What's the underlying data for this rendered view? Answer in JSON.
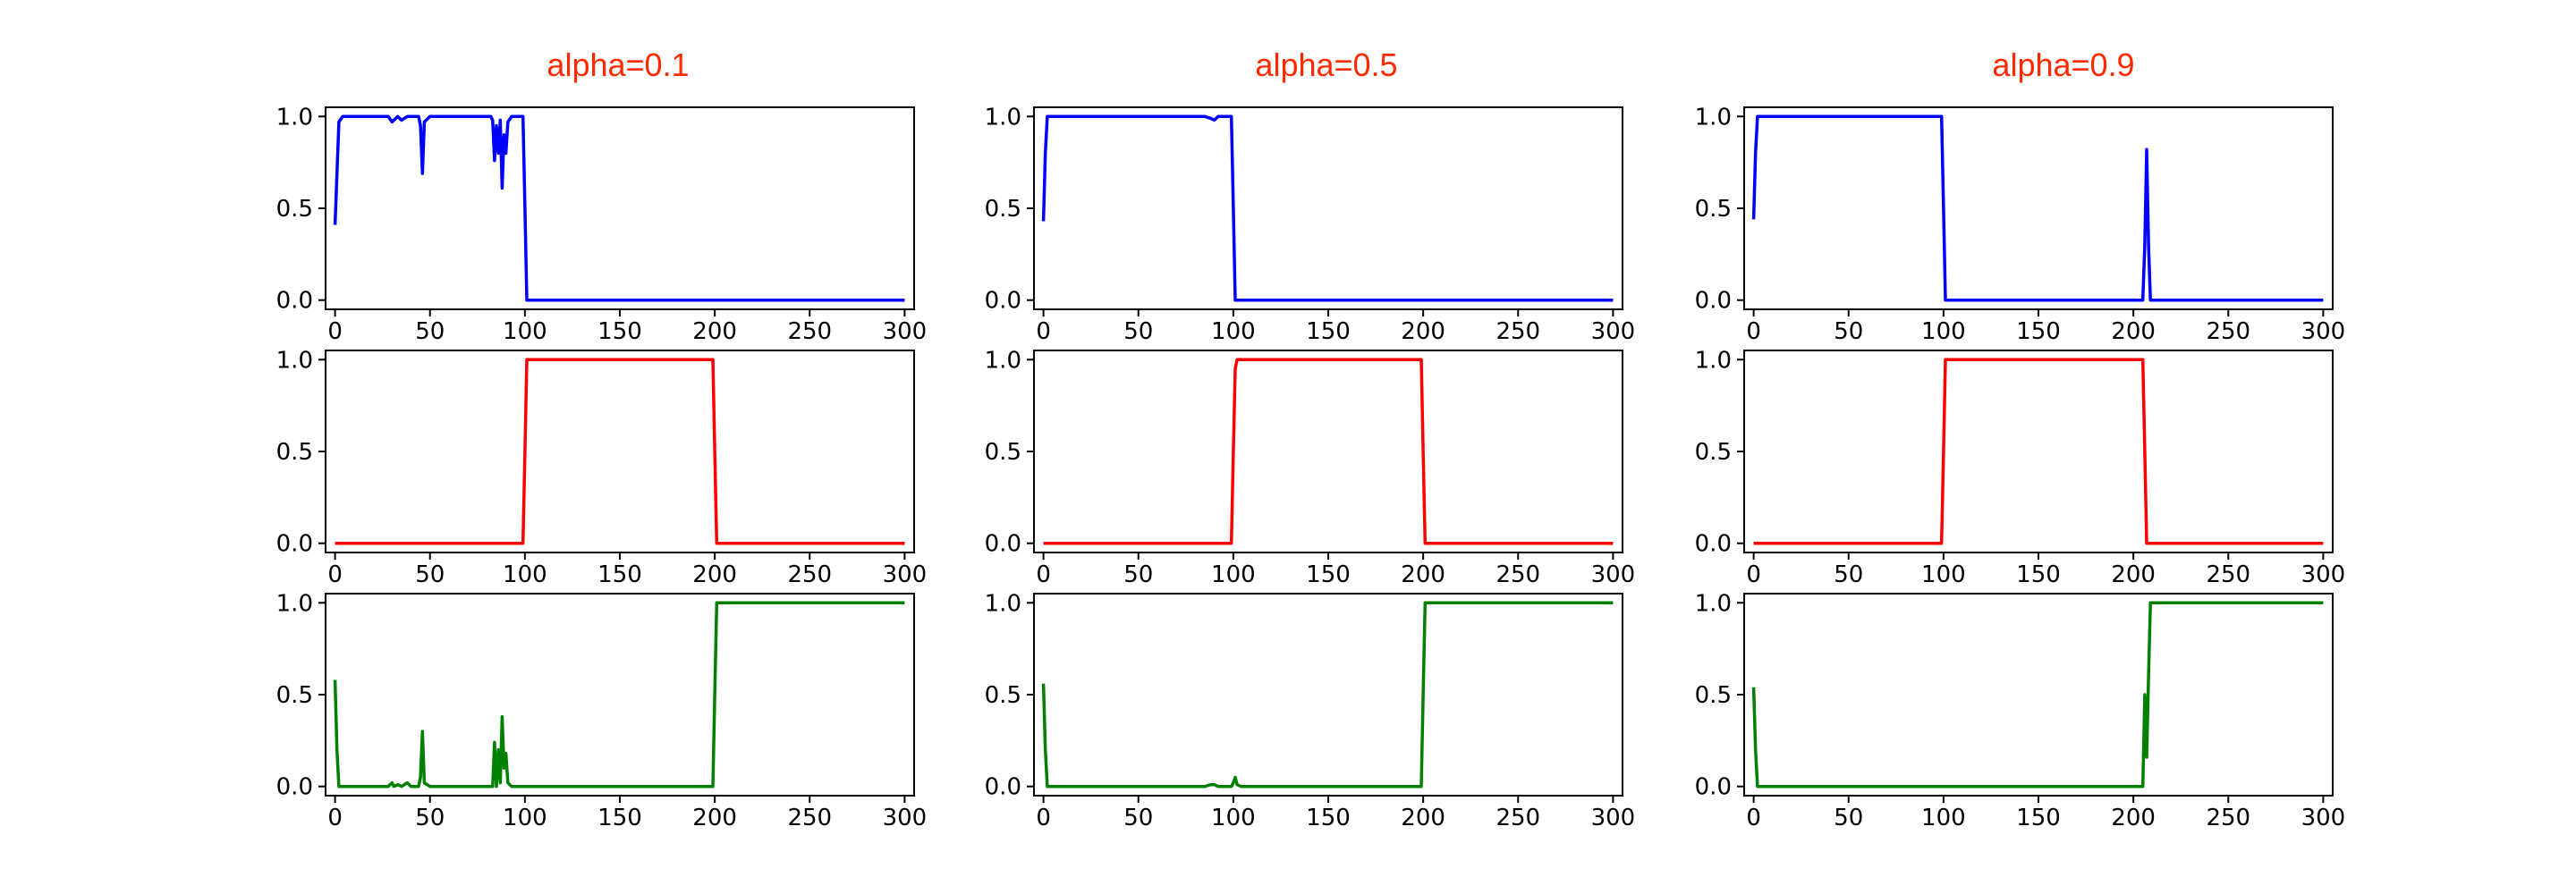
{
  "chart_data": {
    "type": "line",
    "layout": "3x3 grid of small multiples",
    "columns": [
      {
        "title": "alpha=0.1"
      },
      {
        "title": "alpha=0.5"
      },
      {
        "title": "alpha=0.9"
      }
    ],
    "row_colors": [
      "#0000ff",
      "#ff0000",
      "#008000"
    ],
    "xlim": [
      -5,
      305
    ],
    "ylim": [
      -0.05,
      1.05
    ],
    "xticks": [
      0,
      50,
      100,
      150,
      200,
      250,
      300
    ],
    "yticks": [
      0.0,
      0.5,
      1.0
    ],
    "xtick_labels": [
      "0",
      "50",
      "100",
      "150",
      "200",
      "250",
      "300"
    ],
    "ytick_labels": [
      "0.0",
      "0.5",
      "1.0"
    ],
    "grid": false,
    "panels": [
      [
        {
          "x": [
            0,
            2,
            4,
            10,
            20,
            28,
            30,
            33,
            35,
            38,
            40,
            44,
            45,
            46,
            47,
            50,
            60,
            70,
            80,
            82,
            83,
            84,
            85,
            86,
            87,
            88,
            89,
            90,
            91,
            93,
            95,
            99,
            100,
            101,
            102,
            110,
            150,
            200,
            250,
            300
          ],
          "y": [
            0.41,
            0.97,
            1.0,
            1.0,
            1.0,
            1.0,
            0.97,
            1.0,
            0.98,
            1.0,
            1.0,
            1.0,
            0.95,
            0.69,
            0.97,
            1.0,
            1.0,
            1.0,
            1.0,
            1.0,
            0.98,
            0.76,
            0.95,
            0.8,
            0.98,
            0.61,
            0.9,
            0.8,
            0.97,
            1.0,
            1.0,
            1.0,
            0.5,
            0.0,
            0.0,
            0.0,
            0.0,
            0.0,
            0.0,
            0.0
          ]
        },
        {
          "x": [
            0,
            50,
            99,
            100,
            101,
            150,
            199,
            200,
            201,
            250,
            300
          ],
          "y": [
            0.0,
            0.0,
            0.0,
            0.5,
            1.0,
            1.0,
            1.0,
            0.5,
            0.0,
            0.0,
            0.0
          ]
        },
        {
          "x": [
            0,
            1,
            2,
            10,
            20,
            28,
            30,
            31,
            33,
            35,
            38,
            40,
            44,
            45,
            46,
            47,
            50,
            60,
            70,
            80,
            83,
            84,
            85,
            86,
            87,
            88,
            89,
            90,
            91,
            93,
            95,
            100,
            150,
            199,
            200,
            201,
            250,
            300
          ],
          "y": [
            0.58,
            0.2,
            0.0,
            0.0,
            0.0,
            0.0,
            0.02,
            0.0,
            0.01,
            0.0,
            0.02,
            0.0,
            0.0,
            0.05,
            0.3,
            0.02,
            0.0,
            0.0,
            0.0,
            0.0,
            0.0,
            0.24,
            0.0,
            0.2,
            0.02,
            0.38,
            0.1,
            0.18,
            0.02,
            0.0,
            0.0,
            0.0,
            0.0,
            0.0,
            0.5,
            1.0,
            1.0,
            1.0
          ]
        }
      ],
      [
        {
          "x": [
            0,
            1,
            2,
            10,
            50,
            80,
            85,
            88,
            90,
            92,
            95,
            99,
            100,
            101,
            102,
            150,
            200,
            250,
            300
          ],
          "y": [
            0.43,
            0.8,
            1.0,
            1.0,
            1.0,
            1.0,
            1.0,
            0.99,
            0.98,
            1.0,
            1.0,
            1.0,
            0.5,
            0.0,
            0.0,
            0.0,
            0.0,
            0.0,
            0.0
          ]
        },
        {
          "x": [
            0,
            50,
            99,
            100,
            101,
            102,
            150,
            199,
            200,
            201,
            250,
            300
          ],
          "y": [
            0.0,
            0.0,
            0.0,
            0.5,
            0.95,
            1.0,
            1.0,
            1.0,
            0.5,
            0.0,
            0.0,
            0.0
          ]
        },
        {
          "x": [
            0,
            1,
            2,
            10,
            50,
            85,
            88,
            90,
            92,
            95,
            99,
            100,
            101,
            102,
            104,
            150,
            199,
            200,
            201,
            250,
            300
          ],
          "y": [
            0.56,
            0.2,
            0.0,
            0.0,
            0.0,
            0.0,
            0.01,
            0.01,
            0.0,
            0.0,
            0.0,
            0.02,
            0.05,
            0.01,
            0.0,
            0.0,
            0.0,
            0.5,
            1.0,
            1.0,
            1.0
          ]
        }
      ],
      [
        {
          "x": [
            0,
            1,
            2,
            3,
            50,
            99,
            100,
            101,
            150,
            205,
            206,
            207,
            208,
            209,
            210,
            250,
            300
          ],
          "y": [
            0.44,
            0.8,
            1.0,
            1.0,
            1.0,
            1.0,
            0.5,
            0.0,
            0.0,
            0.0,
            0.3,
            0.82,
            0.3,
            0.0,
            0.0,
            0.0,
            0.0
          ]
        },
        {
          "x": [
            0,
            50,
            99,
            100,
            101,
            150,
            205,
            206,
            207,
            250,
            300
          ],
          "y": [
            0.0,
            0.0,
            0.0,
            0.5,
            1.0,
            1.0,
            1.0,
            0.5,
            0.0,
            0.0,
            0.0
          ]
        },
        {
          "x": [
            0,
            1,
            2,
            50,
            100,
            150,
            205,
            206,
            207,
            208,
            209,
            210,
            250,
            300
          ],
          "y": [
            0.54,
            0.2,
            0.0,
            0.0,
            0.0,
            0.0,
            0.0,
            0.5,
            0.16,
            0.6,
            1.0,
            1.0,
            1.0,
            1.0
          ]
        }
      ]
    ]
  }
}
